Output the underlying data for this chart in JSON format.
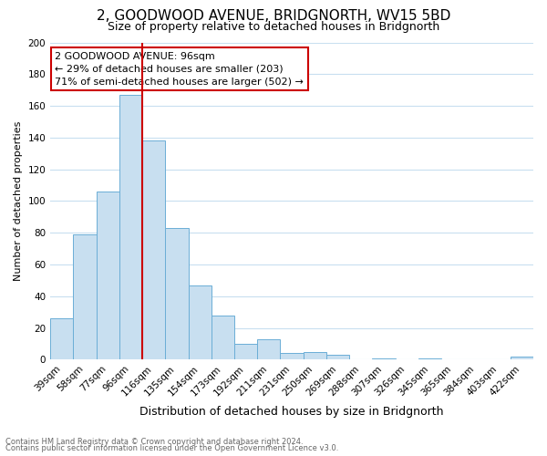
{
  "title": "2, GOODWOOD AVENUE, BRIDGNORTH, WV15 5BD",
  "subtitle": "Size of property relative to detached houses in Bridgnorth",
  "xlabel": "Distribution of detached houses by size in Bridgnorth",
  "ylabel": "Number of detached properties",
  "footnote1": "Contains HM Land Registry data © Crown copyright and database right 2024.",
  "footnote2": "Contains public sector information licensed under the Open Government Licence v3.0.",
  "bar_labels": [
    "39sqm",
    "58sqm",
    "77sqm",
    "96sqm",
    "116sqm",
    "135sqm",
    "154sqm",
    "173sqm",
    "192sqm",
    "211sqm",
    "231sqm",
    "250sqm",
    "269sqm",
    "288sqm",
    "307sqm",
    "326sqm",
    "345sqm",
    "365sqm",
    "384sqm",
    "403sqm",
    "422sqm"
  ],
  "bar_values": [
    26,
    79,
    106,
    167,
    138,
    83,
    47,
    28,
    10,
    13,
    4,
    5,
    3,
    0,
    1,
    0,
    1,
    0,
    0,
    0,
    2
  ],
  "bar_color": "#c8dff0",
  "bar_edge_color": "#6baed6",
  "vline_bar_index": 3,
  "vline_color": "#cc0000",
  "annotation_title": "2 GOODWOOD AVENUE: 96sqm",
  "annotation_line1": "← 29% of detached houses are smaller (203)",
  "annotation_line2": "71% of semi-detached houses are larger (502) →",
  "annotation_box_color": "#ffffff",
  "annotation_box_edge": "#cc0000",
  "ylim": [
    0,
    200
  ],
  "yticks": [
    0,
    20,
    40,
    60,
    80,
    100,
    120,
    140,
    160,
    180,
    200
  ],
  "background_color": "#ffffff",
  "grid_color": "#c8dff0",
  "title_fontsize": 11,
  "subtitle_fontsize": 9,
  "ylabel_fontsize": 8,
  "xlabel_fontsize": 9,
  "tick_fontsize": 7.5,
  "annot_fontsize": 8
}
